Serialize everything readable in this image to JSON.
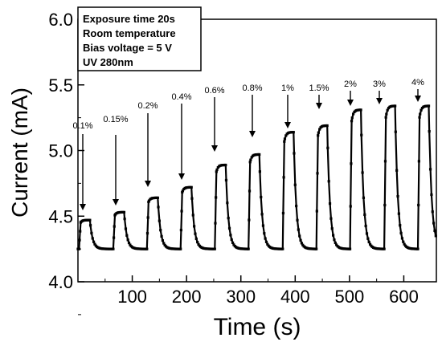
{
  "chart_data": {
    "type": "line",
    "title": "",
    "xlabel": "Time (s)",
    "ylabel": "Current (mA)",
    "xlim": [
      0,
      660
    ],
    "ylim": [
      4.0,
      6.0
    ],
    "x_ticks": [
      100,
      200,
      300,
      400,
      500,
      600
    ],
    "y_ticks": [
      4.0,
      4.5,
      5.0,
      5.5,
      6.0
    ],
    "y_tick_labels": [
      "4.0",
      "4.5",
      "5.0",
      "5.5",
      "6.0"
    ],
    "grid": false,
    "info_box": {
      "lines": [
        "Exposure time 20s",
        "Room temperature",
        "Bias voltage = 5 V",
        "UV 280nm"
      ]
    },
    "series": [
      {
        "pulses": [
          {
            "label": "0.1%",
            "on": 2,
            "off": 22,
            "peak": 4.47
          },
          {
            "label": "0.15%",
            "on": 65,
            "off": 85,
            "peak": 4.53
          },
          {
            "label": "0.2%",
            "on": 127,
            "off": 147,
            "peak": 4.64
          },
          {
            "label": "0.4%",
            "on": 189,
            "off": 209,
            "peak": 4.72
          },
          {
            "label": "0.6%",
            "on": 252,
            "off": 272,
            "peak": 4.89
          },
          {
            "label": "0.8%",
            "on": 314,
            "off": 334,
            "peak": 4.97
          },
          {
            "label": "1%",
            "on": 377,
            "off": 397,
            "peak": 5.14
          },
          {
            "label": "1.5%",
            "on": 439,
            "off": 459,
            "peak": 5.19
          },
          {
            "label": "2%",
            "on": 501,
            "off": 521,
            "peak": 5.31
          },
          {
            "label": "3%",
            "on": 564,
            "off": 584,
            "peak": 5.34
          },
          {
            "label": "4%",
            "on": 626,
            "off": 646,
            "peak": 5.34
          }
        ],
        "baseline": 4.25,
        "x_end": 660,
        "end_value": 4.27
      }
    ]
  }
}
